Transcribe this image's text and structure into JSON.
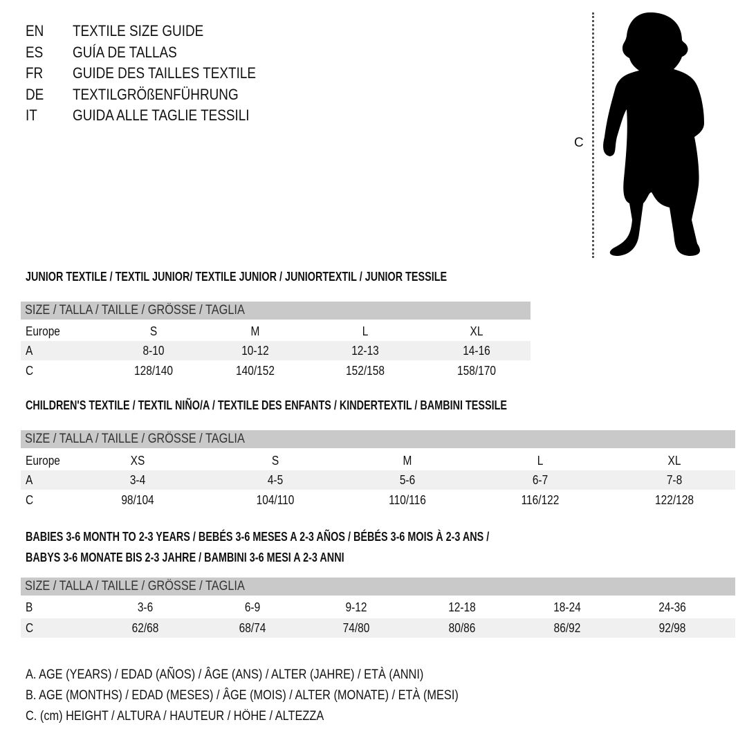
{
  "titles": [
    {
      "code": "EN",
      "text": "TEXTILE SIZE GUIDE"
    },
    {
      "code": "ES",
      "text": "GUÍA DE TALLAS"
    },
    {
      "code": "FR",
      "text": "GUIDE DES TAILLES TEXTILE"
    },
    {
      "code": "DE",
      "text": "TEXTILGRÖßENFÜHRUNG"
    },
    {
      "code": "IT",
      "text": "GUIDA ALLE TAGLIE TESSILI"
    }
  ],
  "figure": {
    "measure_label": "C",
    "icon": "child-silhouette-icon"
  },
  "colors": {
    "header_bg": "#c9c9c9",
    "shade_bg": "#f0f0f0"
  },
  "tables": [
    {
      "title": [
        "JUNIOR TEXTILE / TEXTIL JUNIOR/ TEXTILE JUNIOR / JUNIORTEXTIL / JUNIOR TESSILE"
      ],
      "header": "SIZE / TALLA / TAILLE / GRÖSSE / TAGLIA",
      "rows": [
        {
          "label": "Europe",
          "values": [
            "S",
            "M",
            "L",
            "XL"
          ]
        },
        {
          "label": "A",
          "values": [
            "8-10",
            "10-12",
            "12-13",
            "14-16"
          ]
        },
        {
          "label": "C",
          "values": [
            "128/140",
            "140/152",
            "152/158",
            "158/170"
          ]
        }
      ]
    },
    {
      "title": [
        "CHILDREN'S TEXTILE / TEXTIL NIÑO/A / TEXTILE DES ENFANTS / KINDERTEXTIL / BAMBINI TESSILE"
      ],
      "header": "SIZE / TALLA / TAILLE / GRÖSSE / TAGLIA",
      "rows": [
        {
          "label": "Europe",
          "values": [
            "XS",
            "S",
            "M",
            "L",
            "XL"
          ]
        },
        {
          "label": "A",
          "values": [
            "3-4",
            "4-5",
            "5-6",
            "6-7",
            "7-8"
          ]
        },
        {
          "label": "C",
          "values": [
            "98/104",
            "104/110",
            "110/116",
            "116/122",
            "122/128"
          ]
        }
      ]
    },
    {
      "title": [
        "BABIES 3-6 MONTH TO 2-3 YEARS / BEBÉS 3-6 MESES A 2-3 AÑOS / BÉBÉS 3-6 MOIS À 2-3 ANS /",
        "BABYS 3-6 MONATE BIS 2-3 JAHRE / BAMBINI 3-6 MESI A 2-3 ANNI"
      ],
      "header": "SIZE / TALLA / TAILLE / GRÖSSE / TAGLIA",
      "rows": [
        {
          "label": "B",
          "values": [
            "3-6",
            "6-9",
            "9-12",
            "12-18",
            "18-24",
            "24-36"
          ]
        },
        {
          "label": "C",
          "values": [
            "62/68",
            "68/74",
            "74/80",
            "80/86",
            "86/92",
            "92/98"
          ]
        }
      ]
    }
  ],
  "legend": [
    "A. AGE (YEARS) / EDAD (AÑOS) / ÂGE (ANS) / ALTER (JAHRE) / ETÀ (ANNI)",
    "B. AGE (MONTHS) / EDAD (MESES) / ÂGE (MOIS) / ALTER (MONATE) / ETÀ (MESI)",
    "C. (cm) HEIGHT / ALTURA / HAUTEUR / HÖHE / ALTEZZA"
  ]
}
